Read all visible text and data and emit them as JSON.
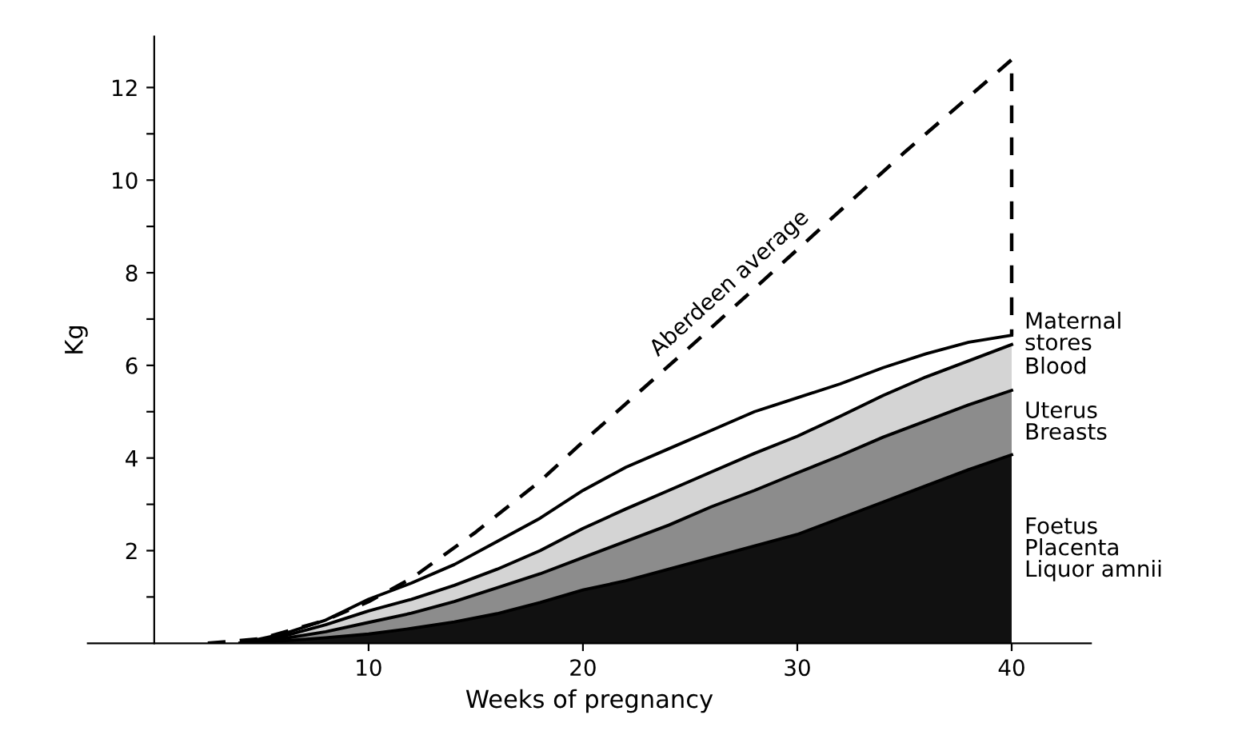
{
  "chart_data": {
    "type": "area",
    "stacked": true,
    "xlabel": "Weeks of pregnancy",
    "ylabel": "Kg",
    "x": [
      4,
      6,
      8,
      10,
      12,
      14,
      16,
      18,
      20,
      22,
      24,
      26,
      28,
      30,
      32,
      34,
      36,
      38,
      40
    ],
    "xlim": [
      -3.1,
      43.7
    ],
    "ylim": [
      0,
      13.1
    ],
    "xticks": [
      10,
      20,
      30,
      40
    ],
    "yticks": [
      {
        "value": 1,
        "label": null
      },
      2,
      {
        "value": 3,
        "label": null
      },
      4,
      {
        "value": 5,
        "label": null
      },
      6,
      {
        "value": 7,
        "label": null
      },
      8,
      {
        "value": 9,
        "label": null
      },
      10,
      {
        "value": 11,
        "label": null
      },
      12
    ],
    "grid": false,
    "legend": false,
    "marker": "none",
    "series": [
      {
        "name": "Foetus\nPlacenta\nLiquor amnii",
        "color": "#111111",
        "values": [
          0,
          0.05,
          0.12,
          0.2,
          0.32,
          0.46,
          0.64,
          0.88,
          1.15,
          1.35,
          1.6,
          1.85,
          2.1,
          2.35,
          2.7,
          3.05,
          3.4,
          3.75,
          4.07
        ]
      },
      {
        "name": "Uterus\nBreasts",
        "color": "#8c8c8c",
        "values": [
          0,
          0.05,
          0.13,
          0.25,
          0.33,
          0.44,
          0.56,
          0.62,
          0.7,
          0.85,
          0.95,
          1.1,
          1.2,
          1.33,
          1.35,
          1.4,
          1.4,
          1.4,
          1.39
        ]
      },
      {
        "name": "Blood",
        "color": "#d4d4d4",
        "values": [
          0,
          0.05,
          0.15,
          0.25,
          0.3,
          0.35,
          0.4,
          0.5,
          0.63,
          0.7,
          0.75,
          0.75,
          0.8,
          0.79,
          0.85,
          0.9,
          0.95,
          0.95,
          0.99
        ]
      },
      {
        "name": "Maternal\nstores",
        "color": "#ffffff",
        "values": [
          0,
          0.05,
          0.1,
          0.25,
          0.35,
          0.45,
          0.6,
          0.7,
          0.82,
          0.9,
          0.9,
          0.9,
          0.9,
          0.83,
          0.7,
          0.6,
          0.5,
          0.4,
          0.2
        ]
      },
      {
        "name": "Aberdeen average",
        "type": "line",
        "line_style": "dashed",
        "color": "#000000",
        "x": [
          2.5,
          5,
          8,
          10,
          12,
          15,
          18,
          20,
          25,
          30,
          35,
          40,
          40
        ],
        "values": [
          0,
          0.1,
          0.5,
          0.9,
          1.4,
          2.4,
          3.5,
          4.35,
          6.4,
          8.5,
          10.6,
          12.6,
          6.65
        ]
      }
    ]
  }
}
